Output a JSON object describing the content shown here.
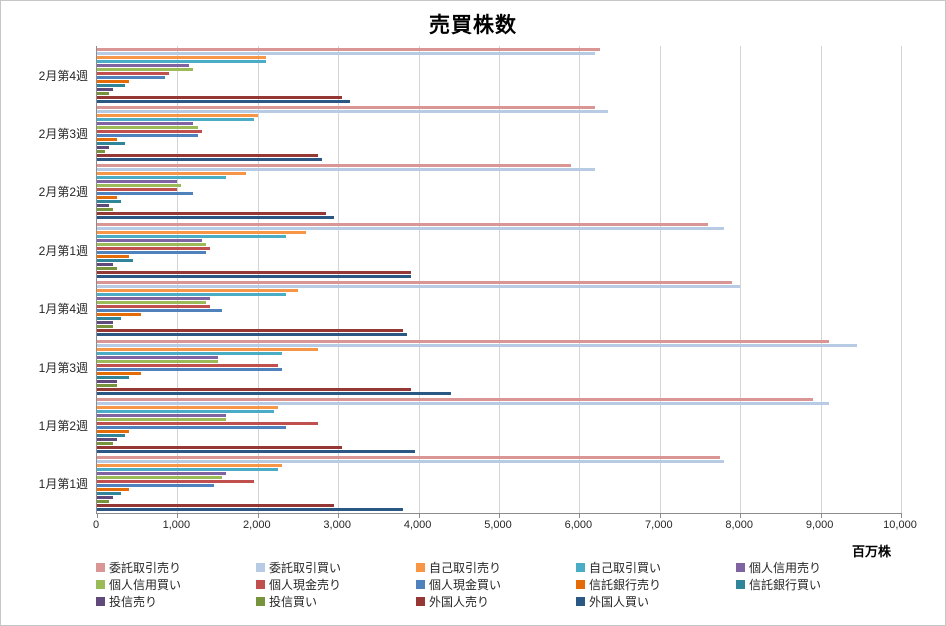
{
  "chart_data": {
    "type": "bar",
    "orientation": "horizontal",
    "title": "売買株数",
    "xlabel": "百万株",
    "xlim": [
      0,
      10000
    ],
    "grid": true,
    "legend_position": "bottom",
    "legend_columns": 5,
    "x_ticks": [
      "0",
      "1,000",
      "2,000",
      "3,000",
      "4,000",
      "5,000",
      "6,000",
      "7,000",
      "8,000",
      "9,000",
      "10,000"
    ],
    "categories": [
      "2月第4週",
      "2月第3週",
      "2月第2週",
      "2月第1週",
      "1月第4週",
      "1月第3週",
      "1月第2週",
      "1月第1週"
    ],
    "series": [
      {
        "name": "委託取引売り",
        "color": "#d99694",
        "values": [
          6250,
          6200,
          5900,
          7600,
          7900,
          9100,
          8900,
          7750
        ]
      },
      {
        "name": "委託取引買い",
        "color": "#b8cbe4",
        "values": [
          6200,
          6350,
          6200,
          7800,
          8000,
          9450,
          9100,
          7800
        ]
      },
      {
        "name": "自己取引売り",
        "color": "#f79646",
        "values": [
          2100,
          2000,
          1850,
          2600,
          2500,
          2750,
          2250,
          2300
        ]
      },
      {
        "name": "自己取引買い",
        "color": "#4bacc6",
        "values": [
          2100,
          1950,
          1600,
          2350,
          2350,
          2300,
          2200,
          2250
        ]
      },
      {
        "name": "個人信用売り",
        "color": "#8064a2",
        "values": [
          1150,
          1200,
          1000,
          1300,
          1400,
          1500,
          1600,
          1600
        ]
      },
      {
        "name": "個人信用買い",
        "color": "#9bbb59",
        "values": [
          1200,
          1250,
          1050,
          1350,
          1350,
          1500,
          1600,
          1550
        ]
      },
      {
        "name": "個人現金売り",
        "color": "#c0504d",
        "values": [
          900,
          1300,
          1000,
          1400,
          1400,
          2250,
          2750,
          1950
        ]
      },
      {
        "name": "個人現金買い",
        "color": "#4f81bd",
        "values": [
          850,
          1250,
          1200,
          1350,
          1550,
          2300,
          2350,
          1450
        ]
      },
      {
        "name": "信託銀行売り",
        "color": "#e36c09",
        "values": [
          400,
          250,
          250,
          400,
          550,
          550,
          400,
          400
        ]
      },
      {
        "name": "信託銀行買い",
        "color": "#31859b",
        "values": [
          350,
          350,
          300,
          450,
          300,
          400,
          350,
          300
        ]
      },
      {
        "name": "投信売り",
        "color": "#604a7b",
        "values": [
          200,
          150,
          150,
          200,
          200,
          250,
          250,
          200
        ]
      },
      {
        "name": "投信買い",
        "color": "#77933c",
        "values": [
          150,
          100,
          200,
          250,
          200,
          250,
          200,
          150
        ]
      },
      {
        "name": "外国人売り",
        "color": "#953734",
        "values": [
          3050,
          2750,
          2850,
          3900,
          3800,
          3900,
          3050,
          2950
        ]
      },
      {
        "name": "外国人買い",
        "color": "#2a5783",
        "values": [
          3150,
          2800,
          2950,
          3900,
          3850,
          4400,
          3950,
          3800
        ]
      }
    ]
  }
}
